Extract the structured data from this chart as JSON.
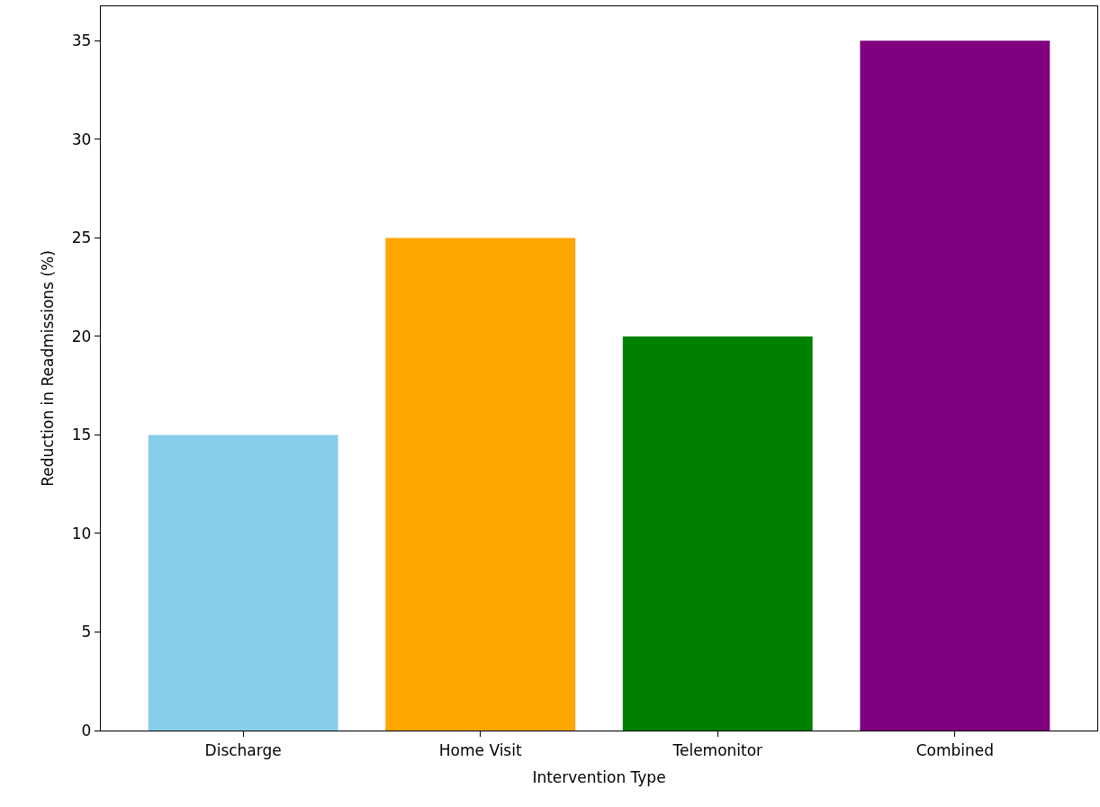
{
  "chart_data": {
    "type": "bar",
    "xlabel": "Intervention Type",
    "ylabel": "Reduction in Readmissions (%)",
    "categories": [
      "Discharge",
      "Home Visit",
      "Telemonitor",
      "Combined"
    ],
    "values": [
      15,
      25,
      20,
      35
    ],
    "colors": [
      "#87ceeb",
      "#ffa500",
      "#008000",
      "#800080"
    ],
    "ylim": [
      0,
      36.75
    ],
    "yticks": [
      0,
      5,
      10,
      15,
      20,
      25,
      30,
      35
    ]
  }
}
